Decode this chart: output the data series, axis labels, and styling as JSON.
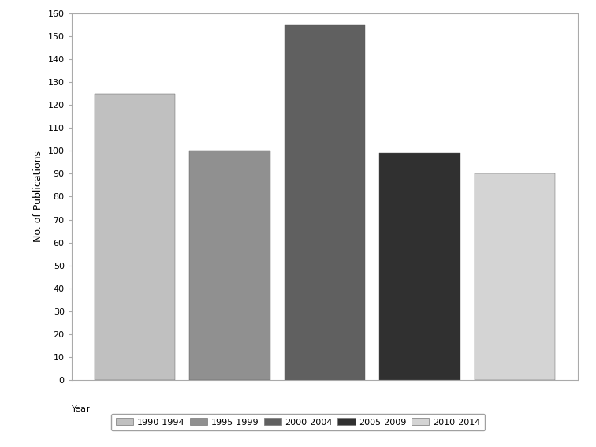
{
  "categories": [
    "1990-1994",
    "1995-1999",
    "2000-2004",
    "2005-2009",
    "2010-2014"
  ],
  "values": [
    125,
    100,
    155,
    99,
    90
  ],
  "bar_colors": [
    "#c0c0c0",
    "#909090",
    "#606060",
    "#303030",
    "#d4d4d4"
  ],
  "ylabel": "No. of Publications",
  "ylim": [
    0,
    160
  ],
  "yticks": [
    0,
    10,
    20,
    30,
    40,
    50,
    60,
    70,
    80,
    90,
    100,
    110,
    120,
    130,
    140,
    150,
    160
  ],
  "legend_label": "Year",
  "background_color": "#ffffff",
  "bar_edge_color": "#555555",
  "bar_edge_width": 0.3,
  "bar_width": 0.85
}
